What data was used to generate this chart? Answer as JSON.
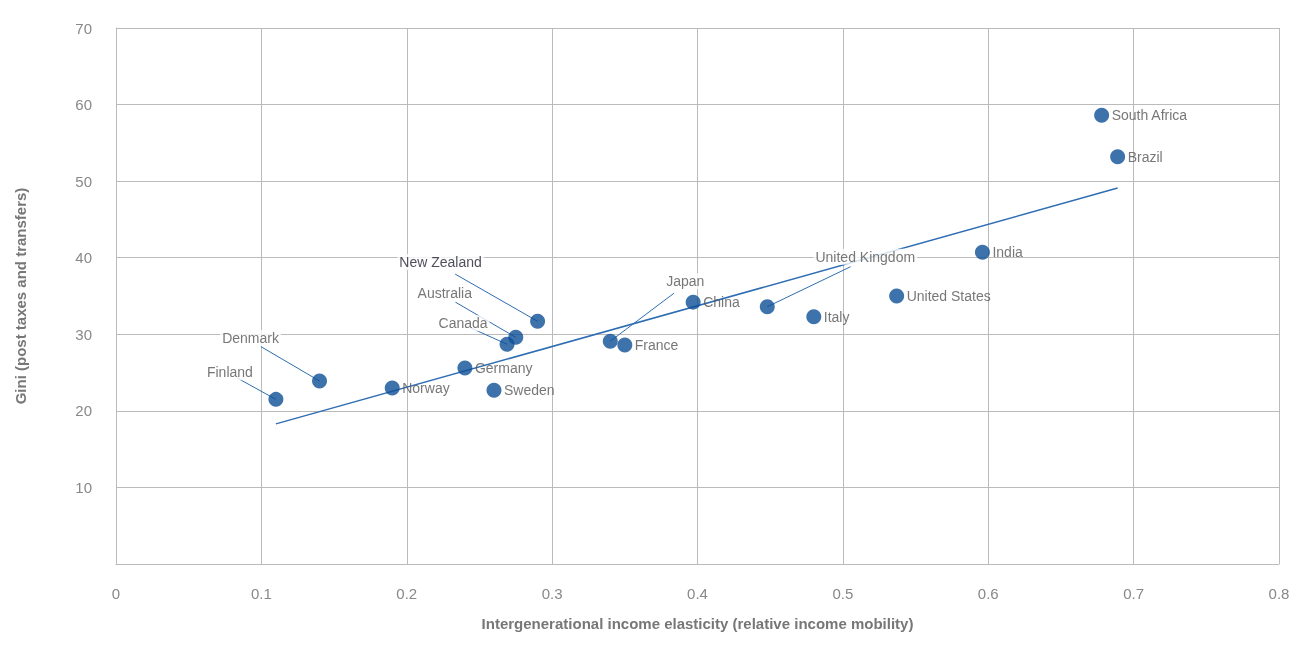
{
  "chart_data": {
    "type": "scatter",
    "xlabel": "Intergenerational income elasticity (relative income mobility)",
    "ylabel": "Gini (post taxes and transfers)",
    "xlim": [
      0,
      0.8
    ],
    "xticks": [
      0,
      0.1,
      0.2,
      0.3,
      0.4,
      0.5,
      0.6,
      0.7,
      0.8
    ],
    "ylim": [
      0,
      70
    ],
    "yticks": [
      {
        "value": 0,
        "label": null
      },
      10,
      20,
      30,
      40,
      50,
      60,
      70
    ],
    "grid": true,
    "marker": "circle",
    "series": [
      {
        "color": "#0d4f96",
        "x": [
          0.11,
          0.14,
          0.19,
          0.24,
          0.26,
          0.269,
          0.275,
          0.29,
          0.34,
          0.35,
          0.397,
          0.448,
          0.48,
          0.537,
          0.596,
          0.678,
          0.689
        ],
        "values": [
          21.5,
          23.9,
          23.0,
          25.6,
          22.7,
          28.7,
          29.6,
          31.7,
          29.1,
          28.6,
          34.2,
          33.6,
          32.3,
          35.0,
          40.7,
          58.6,
          53.2
        ]
      },
      {
        "type": "line",
        "color": "#2e6db4",
        "marker": "none",
        "x": [
          0.11,
          0.689
        ],
        "values": [
          18.3,
          49.1
        ]
      }
    ],
    "annotations": [
      {
        "text": "Finland",
        "x": 0.11,
        "y": 21.5
      },
      {
        "text": "Denmark",
        "x": 0.14,
        "y": 23.9
      },
      {
        "text": "Norway",
        "x": 0.19,
        "y": 23.0
      },
      {
        "text": "Germany",
        "x": 0.24,
        "y": 25.6
      },
      {
        "text": "Sweden",
        "x": 0.26,
        "y": 22.7
      },
      {
        "text": "Canada",
        "x": 0.269,
        "y": 28.7
      },
      {
        "text": "Australia",
        "x": 0.275,
        "y": 29.6
      },
      {
        "text": "New Zealand",
        "x": 0.29,
        "y": 31.7
      },
      {
        "text": "Japan",
        "x": 0.34,
        "y": 29.1
      },
      {
        "text": "France",
        "x": 0.35,
        "y": 28.6
      },
      {
        "text": "China",
        "x": 0.397,
        "y": 34.2
      },
      {
        "text": "United Kingdom",
        "x": 0.448,
        "y": 33.6
      },
      {
        "text": "Italy",
        "x": 0.48,
        "y": 32.3
      },
      {
        "text": "United States",
        "x": 0.537,
        "y": 35.0
      },
      {
        "text": "India",
        "x": 0.596,
        "y": 40.7
      },
      {
        "text": "South Africa",
        "x": 0.678,
        "y": 58.6
      },
      {
        "text": "Brazil",
        "x": 0.689,
        "y": 53.2
      }
    ]
  }
}
